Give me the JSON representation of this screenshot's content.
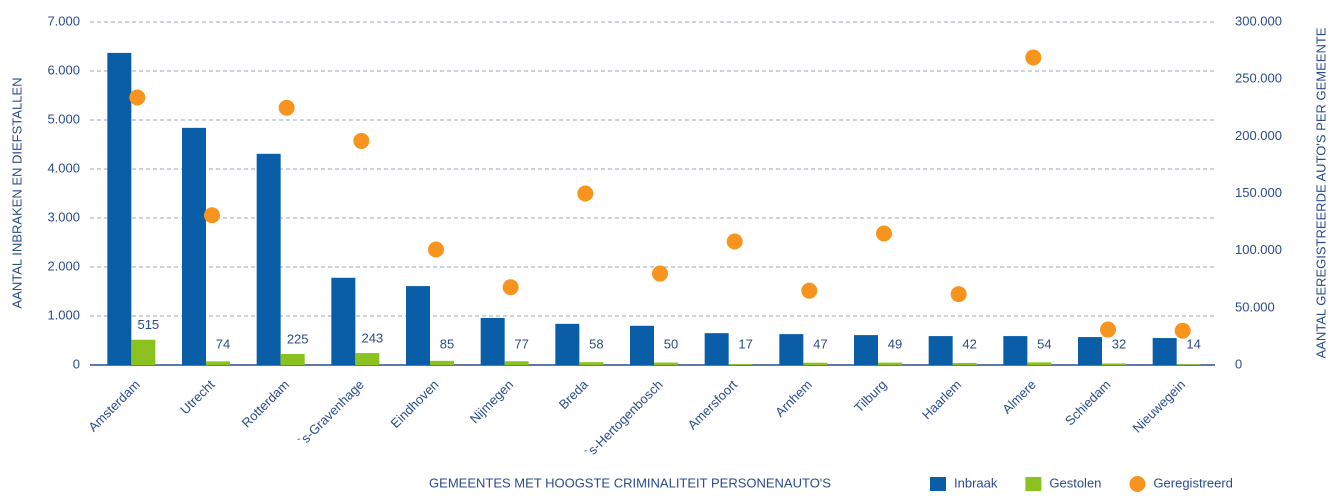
{
  "chart_data": {
    "type": "bar",
    "y_label": "AANTAL INBRAKEN EN DIEFSTALLEN",
    "y2_label": "AANTAL GEREGISTREERDE AUTO'S PER GEMEENTE",
    "x_label": "GEMEENTES MET HOOGSTE CRIMINALITEIT PERSONENAUTO'S",
    "categories": [
      "Amsterdam",
      "Utrecht",
      "Rotterdam",
      "`s-Gravenhage",
      "Eindhoven",
      "Nijmegen",
      "Breda",
      "`s-Hertogenbosch",
      "Amersfoort",
      "Arnhem",
      "Tilburg",
      "Haarlem",
      "Almere",
      "Schiedam",
      "Nieuwegein"
    ],
    "series": [
      {
        "name": "Inbraak",
        "type": "bar",
        "color": "#0a5ea8",
        "values": [
          6370,
          4840,
          4310,
          1780,
          1610,
          960,
          840,
          800,
          650,
          630,
          610,
          590,
          590,
          570,
          550
        ]
      },
      {
        "name": "Gestolen",
        "type": "bar",
        "color": "#8cc21f",
        "values": [
          515,
          74,
          225,
          243,
          85,
          77,
          58,
          50,
          17,
          47,
          49,
          42,
          54,
          32,
          14
        ],
        "show_labels": true
      },
      {
        "name": "Geregistreerd",
        "type": "scatter",
        "axis": "y2",
        "color": "#f7941d",
        "values": [
          234000,
          131000,
          225000,
          196000,
          101000,
          68000,
          150000,
          80000,
          108000,
          65000,
          115000,
          62000,
          269000,
          31000,
          30000
        ]
      }
    ],
    "ylim": [
      0,
      7000
    ],
    "yticks": [
      0,
      {
        "value": 1000,
        "label": "1.000"
      },
      {
        "value": 2000,
        "label": "2.000"
      },
      {
        "value": 3000,
        "label": "3.000"
      },
      {
        "value": 4000,
        "label": "4.000"
      },
      {
        "value": 5000,
        "label": "5.000"
      },
      {
        "value": 6000,
        "label": "6.000"
      },
      {
        "value": 7000,
        "label": "7.000"
      }
    ],
    "y2lim": [
      0,
      300000
    ],
    "y2ticks": [
      0,
      {
        "value": 50000,
        "label": "50.000"
      },
      {
        "value": 100000,
        "label": "100.000"
      },
      {
        "value": 150000,
        "label": "150.000"
      },
      {
        "value": 200000,
        "label": "200.000"
      },
      {
        "value": 250000,
        "label": "250.000"
      },
      {
        "value": 300000,
        "label": "300.000"
      }
    ],
    "grid": true,
    "legend": "bottom-right"
  }
}
